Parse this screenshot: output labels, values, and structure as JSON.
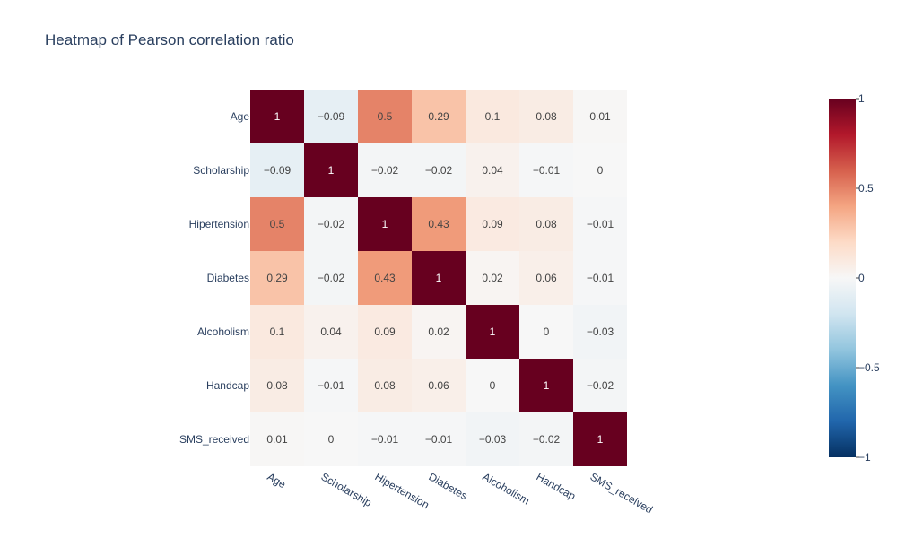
{
  "chart_data": {
    "type": "heatmap",
    "title": "Heatmap of Pearson correlation ratio",
    "x_labels": [
      "Age",
      "Scholarship",
      "Hipertension",
      "Diabetes",
      "Alcoholism",
      "Handcap",
      "SMS_received"
    ],
    "y_labels": [
      "Age",
      "Scholarship",
      "Hipertension",
      "Diabetes",
      "Alcoholism",
      "Handcap",
      "SMS_received"
    ],
    "values": [
      [
        1,
        -0.09,
        0.5,
        0.29,
        0.1,
        0.08,
        0.01
      ],
      [
        -0.09,
        1,
        -0.02,
        -0.02,
        0.04,
        -0.01,
        0
      ],
      [
        0.5,
        -0.02,
        1,
        0.43,
        0.09,
        0.08,
        -0.01
      ],
      [
        0.29,
        -0.02,
        0.43,
        1,
        0.02,
        0.06,
        -0.01
      ],
      [
        0.1,
        0.04,
        0.09,
        0.02,
        1,
        0,
        -0.03
      ],
      [
        0.08,
        -0.01,
        0.08,
        0.06,
        0,
        1,
        -0.02
      ],
      [
        0.01,
        0,
        -0.01,
        -0.01,
        -0.03,
        -0.02,
        1
      ]
    ],
    "cell_labels": [
      [
        "1",
        "−0.09",
        "0.5",
        "0.29",
        "0.1",
        "0.08",
        "0.01"
      ],
      [
        "−0.09",
        "1",
        "−0.02",
        "−0.02",
        "0.04",
        "−0.01",
        "0"
      ],
      [
        "0.5",
        "−0.02",
        "1",
        "0.43",
        "0.09",
        "0.08",
        "−0.01"
      ],
      [
        "0.29",
        "−0.02",
        "0.43",
        "1",
        "0.02",
        "0.06",
        "−0.01"
      ],
      [
        "0.1",
        "0.04",
        "0.09",
        "0.02",
        "1",
        "0",
        "−0.03"
      ],
      [
        "0.08",
        "−0.01",
        "0.08",
        "0.06",
        "0",
        "1",
        "−0.02"
      ],
      [
        "0.01",
        "0",
        "−0.01",
        "−0.01",
        "−0.03",
        "−0.02",
        "1"
      ]
    ],
    "colorscale": {
      "name": "RdBu",
      "range": [
        -1,
        1
      ],
      "stops": [
        [
          0,
          "#053061"
        ],
        [
          0.1,
          "#2166ac"
        ],
        [
          0.2,
          "#4393c3"
        ],
        [
          0.3,
          "#92c5de"
        ],
        [
          0.4,
          "#d1e5f0"
        ],
        [
          0.5,
          "#f7f7f7"
        ],
        [
          0.6,
          "#fddbc7"
        ],
        [
          0.7,
          "#f4a582"
        ],
        [
          0.8,
          "#d6604d"
        ],
        [
          0.9,
          "#b2182b"
        ],
        [
          1,
          "#67001f"
        ]
      ]
    },
    "colorbar": {
      "tick_values": [
        1,
        0.5,
        0,
        -0.5,
        -1
      ],
      "tick_labels": [
        "1",
        "0.5",
        "0",
        "−0.5",
        "−1"
      ]
    },
    "text_colors": {
      "dark": "#444444",
      "light": "#ffffff"
    }
  }
}
